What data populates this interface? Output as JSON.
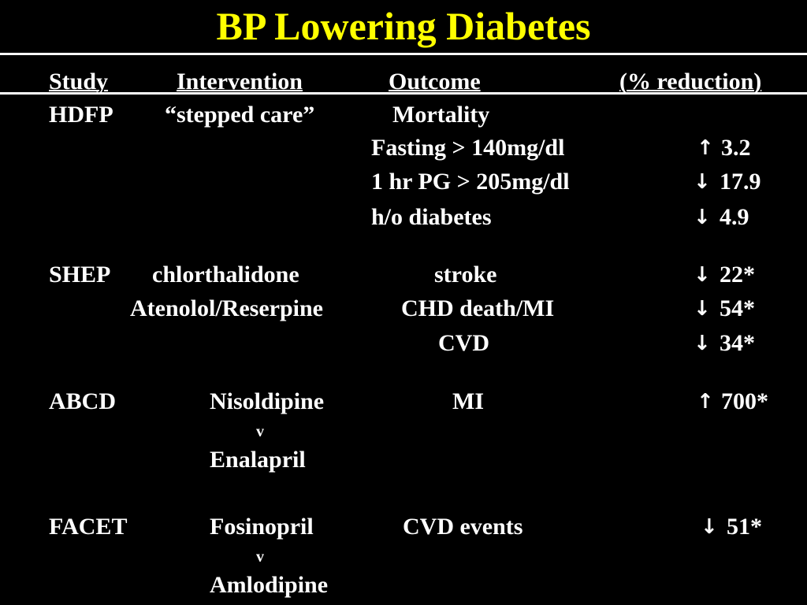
{
  "title": "BP Lowering Diabetes",
  "colors": {
    "background": "#000000",
    "title": "#ffff00",
    "text": "#ffffff"
  },
  "header": {
    "study": "Study",
    "intervention": "Intervention",
    "outcome": "Outcome",
    "reduction": "(% reduction)"
  },
  "hdfp": {
    "study": "HDFP",
    "intervention": "“stepped care”",
    "outcome": "Mortality",
    "rows": [
      {
        "label": "Fasting > 140mg/dl",
        "arrow": "↑",
        "value": "3.2"
      },
      {
        "label": "1 hr PG > 205mg/dl",
        "arrow": "↓",
        "value": "17.9"
      },
      {
        "label": "h/o diabetes",
        "arrow": "↓",
        "value": "4.9"
      }
    ]
  },
  "shep": {
    "study": "SHEP",
    "intervention1": "chlorthalidone",
    "intervention2": "Atenolol/Reserpine",
    "rows": [
      {
        "outcome": "stroke",
        "arrow": "↓",
        "value": "22*"
      },
      {
        "outcome": "CHD death/MI",
        "arrow": "↓",
        "value": "54*"
      },
      {
        "outcome": "CVD",
        "arrow": "↓",
        "value": "34*"
      }
    ]
  },
  "abcd": {
    "study": "ABCD",
    "drug1": "Nisoldipine",
    "vs": "v",
    "drug2": "Enalapril",
    "outcome": "MI",
    "arrow": "↑",
    "value": "700*"
  },
  "facet": {
    "study": "FACET",
    "drug1": "Fosinopril",
    "vs": "v",
    "drug2": "Amlodipine",
    "outcome": "CVD events",
    "arrow": "↓",
    "value": "51*"
  }
}
